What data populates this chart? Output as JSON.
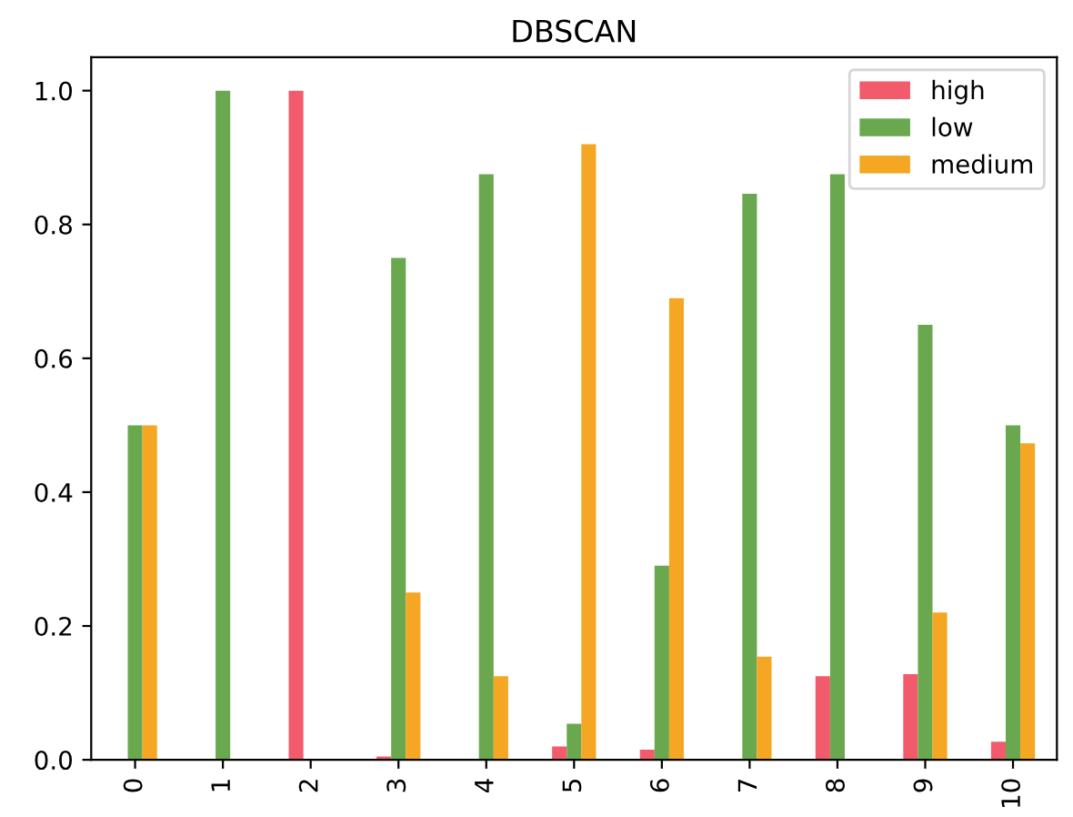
{
  "chart_data": {
    "type": "bar",
    "title": "DBSCAN",
    "categories": [
      "0",
      "1",
      "2",
      "3",
      "4",
      "5",
      "6",
      "7",
      "8",
      "9",
      "10"
    ],
    "series": [
      {
        "name": "high",
        "color": "#f25b6b",
        "values": [
          0,
          0,
          1.0,
          0.005,
          0,
          0.02,
          0.015,
          0,
          0.125,
          0.128,
          0.027
        ]
      },
      {
        "name": "low",
        "color": "#6aa84f",
        "values": [
          0.5,
          1.0,
          0,
          0.75,
          0.875,
          0.054,
          0.29,
          0.846,
          0.875,
          0.65,
          0.5
        ]
      },
      {
        "name": "medium",
        "color": "#f5a623",
        "values": [
          0.5,
          0,
          0,
          0.25,
          0.125,
          0.92,
          0.69,
          0.154,
          0,
          0.22,
          0.473
        ]
      }
    ],
    "ylim": [
      0,
      1.05
    ],
    "yticks": [
      {
        "value": 0,
        "label": "0.0"
      },
      {
        "value": 0.2,
        "label": "0.2"
      },
      {
        "value": 0.4,
        "label": "0.4"
      },
      {
        "value": 0.6,
        "label": "0.6"
      },
      {
        "value": 0.8,
        "label": "0.8"
      },
      {
        "value": 1.0,
        "label": "1.0"
      }
    ],
    "legend": "top right"
  }
}
